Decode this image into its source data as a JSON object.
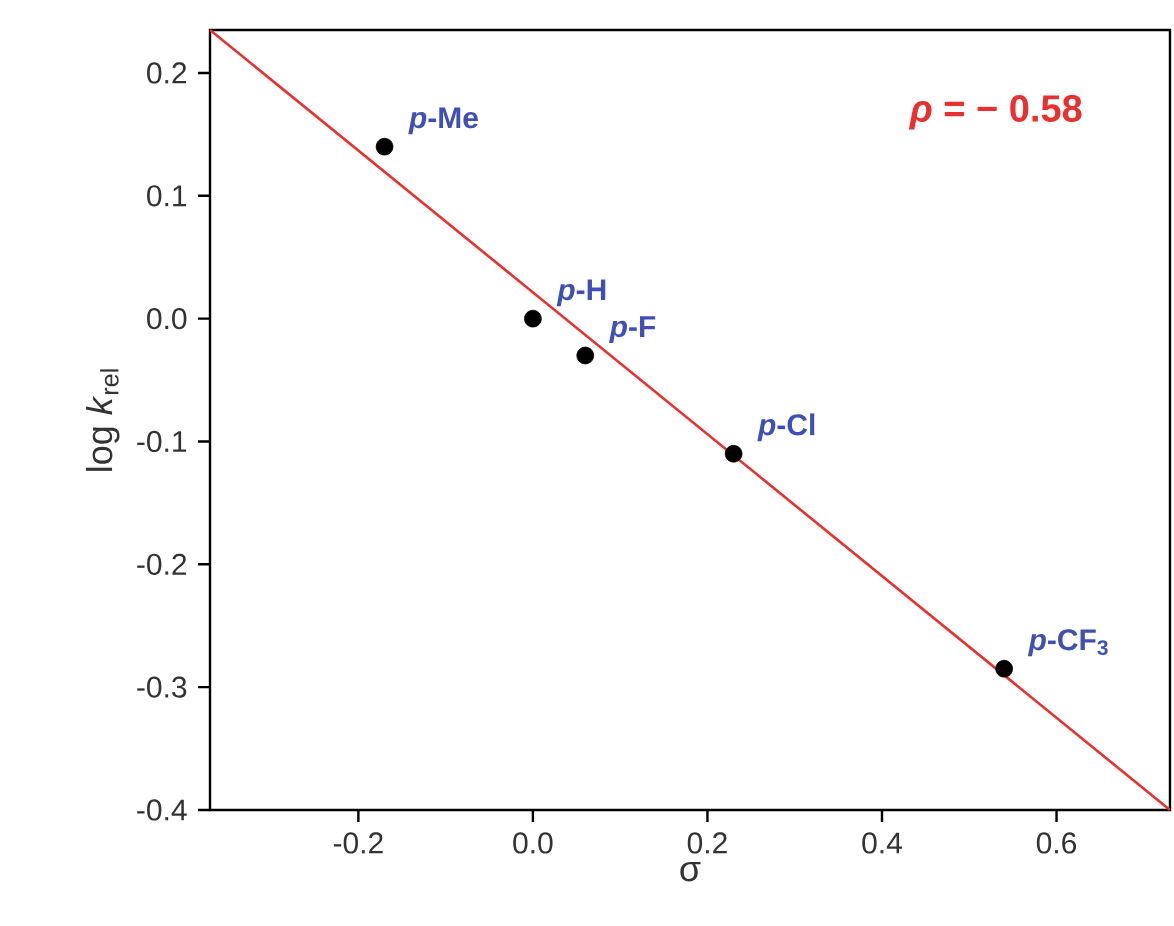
{
  "chart_data": {
    "type": "scatter",
    "xlabel": "σ",
    "ylabel": "log *k*$_{rel}$",
    "xlim": [
      -0.37,
      0.73
    ],
    "ylim": [
      -0.4,
      0.235
    ],
    "xticks": [
      -0.2,
      {
        "value": 0,
        "label": "0.0"
      },
      0.2,
      0.4,
      0.6
    ],
    "yticks": [
      -0.4,
      -0.3,
      -0.2,
      -0.1,
      {
        "value": 0,
        "label": "0.0"
      },
      0.1,
      0.2
    ],
    "marker": "circle",
    "series": [
      {
        "color": "#000000",
        "x": [
          -0.17,
          0,
          0.06,
          0.23,
          0.54
        ],
        "values": [
          0.14,
          0,
          -0.03,
          -0.11,
          -0.285
        ]
      },
      {
        "type": "line",
        "color": "#e8302e",
        "marker": "none",
        "line_style": "solid",
        "x": [
          -0.37,
          0.73
        ],
        "values": [
          0.235,
          -0.4
        ]
      }
    ],
    "annotations": [
      {
        "text": "*p*-Me",
        "x": -0.17,
        "y": 0.14
      },
      {
        "text": "*p*-H",
        "x": 0,
        "y": 0
      },
      {
        "text": "*p*-F",
        "x": 0.06,
        "y": -0.03
      },
      {
        "text": "*p*-Cl",
        "x": 0.23,
        "y": -0.11
      },
      {
        "text": "*p*-CF$_{3}$",
        "x": 0.54,
        "y": -0.285
      },
      "*ρ* = − 0.58"
    ]
  }
}
